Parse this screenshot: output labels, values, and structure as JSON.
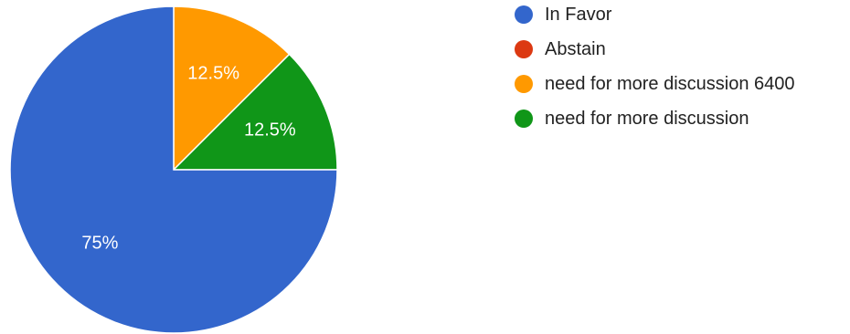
{
  "chart_data": {
    "type": "pie",
    "title": "",
    "slices": [
      {
        "label": "In Favor",
        "value": 75,
        "display": "75%",
        "color": "#3366CC"
      },
      {
        "label": "Abstain",
        "value": 0,
        "display": "",
        "color": "#DC3912"
      },
      {
        "label": "need for more discussion 6400",
        "value": 12.5,
        "display": "12.5%",
        "color": "#FF9900"
      },
      {
        "label": "need for more discussion",
        "value": 12.5,
        "display": "12.5%",
        "color": "#109618"
      }
    ],
    "legend_position": "right"
  }
}
